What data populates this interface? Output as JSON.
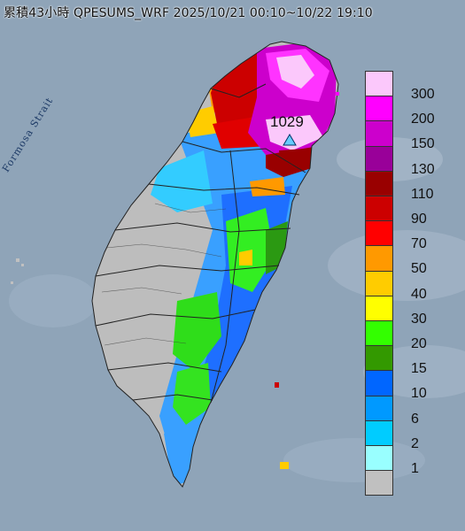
{
  "title": "累積43小時 QPESUMS_WRF 2025/10/21 00:10~10/22 19:10",
  "strait_label": "Formosa Strait",
  "peak_label": "1029",
  "legend": {
    "items": [
      {
        "label": "300",
        "color": "#fbc8fb"
      },
      {
        "label": "200",
        "color": "#ff00ff"
      },
      {
        "label": "150",
        "color": "#cc00cc"
      },
      {
        "label": "130",
        "color": "#990099"
      },
      {
        "label": "110",
        "color": "#990000"
      },
      {
        "label": "90",
        "color": "#cc0000"
      },
      {
        "label": "70",
        "color": "#ff0000"
      },
      {
        "label": "50",
        "color": "#ff9900"
      },
      {
        "label": "40",
        "color": "#ffcc00"
      },
      {
        "label": "30",
        "color": "#ffff00"
      },
      {
        "label": "20",
        "color": "#33ff00"
      },
      {
        "label": "15",
        "color": "#339900"
      },
      {
        "label": "10",
        "color": "#0066ff"
      },
      {
        "label": "6",
        "color": "#0099ff"
      },
      {
        "label": "2",
        "color": "#00ccff"
      },
      {
        "label": "1",
        "color": "#99ffff"
      },
      {
        "label": "",
        "color": "#c0c0c0"
      }
    ]
  },
  "colors": {
    "sea": "#8fa4b8",
    "land_base": "#bdbdbd",
    "boundary": "#222222"
  }
}
